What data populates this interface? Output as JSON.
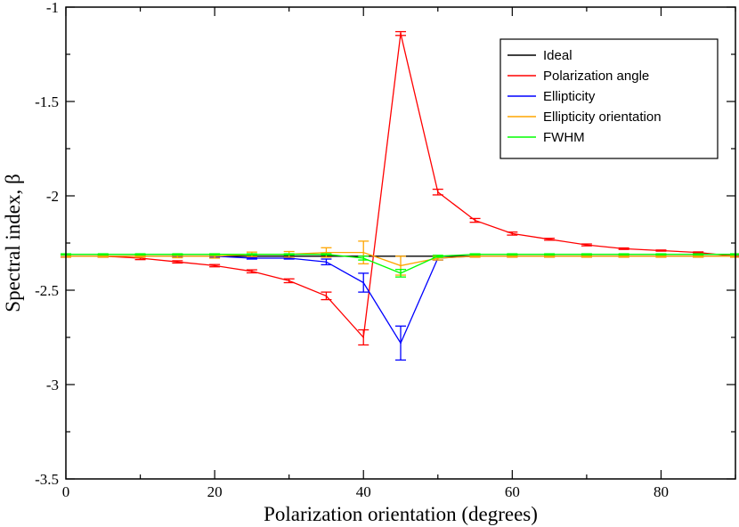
{
  "chart_data": {
    "type": "line",
    "title": "",
    "xlabel": "Polarization orientation (degrees)",
    "ylabel": "Spectral index, β",
    "xlim": [
      0,
      90
    ],
    "ylim": [
      -3.5,
      -1
    ],
    "x_ticks": [
      0,
      20,
      40,
      60,
      80
    ],
    "x_tick_labels": [
      "0",
      "20",
      "40",
      "60",
      "80"
    ],
    "y_ticks": [
      -3.5,
      -3,
      -2.5,
      -2,
      -1.5,
      -1
    ],
    "y_tick_labels": [
      "-3.5",
      "-3",
      "-2.5",
      "-2",
      "-1.5",
      "-1"
    ],
    "grid": false,
    "legend_position": "top-right",
    "series": [
      {
        "name": "Ideal",
        "color": "#000000",
        "x": [
          0,
          90
        ],
        "y": [
          -2.32,
          -2.32
        ],
        "err": [
          0,
          0
        ]
      },
      {
        "name": "Polarization angle",
        "color": "#ff0000",
        "x": [
          0,
          5,
          10,
          15,
          20,
          25,
          30,
          35,
          40,
          45,
          50,
          55,
          60,
          65,
          70,
          75,
          80,
          85,
          90
        ],
        "y": [
          -2.32,
          -2.32,
          -2.33,
          -2.35,
          -2.37,
          -2.4,
          -2.45,
          -2.53,
          -2.75,
          -1.14,
          -1.98,
          -2.13,
          -2.2,
          -2.23,
          -2.26,
          -2.28,
          -2.29,
          -2.3,
          -2.32
        ],
        "err": [
          0.005,
          0.005,
          0.008,
          0.006,
          0.006,
          0.008,
          0.01,
          0.02,
          0.04,
          0.01,
          0.015,
          0.01,
          0.008,
          0.005,
          0.005,
          0.004,
          0.003,
          0.003,
          0.003
        ]
      },
      {
        "name": "Ellipticity",
        "color": "#0000ff",
        "x": [
          0,
          5,
          10,
          15,
          20,
          25,
          30,
          35,
          40,
          45,
          50,
          55,
          60,
          65,
          70,
          75,
          80,
          85,
          90
        ],
        "y": [
          -2.32,
          -2.32,
          -2.32,
          -2.32,
          -2.32,
          -2.33,
          -2.33,
          -2.35,
          -2.46,
          -2.78,
          -2.33,
          -2.32,
          -2.32,
          -2.32,
          -2.32,
          -2.32,
          -2.32,
          -2.32,
          -2.32
        ],
        "err": [
          0.005,
          0.005,
          0.005,
          0.005,
          0.005,
          0.005,
          0.005,
          0.015,
          0.05,
          0.09,
          0.01,
          0.005,
          0.005,
          0.005,
          0.005,
          0.005,
          0.005,
          0.005,
          0.005
        ]
      },
      {
        "name": "Ellipticity orientation",
        "color": "#ffa500",
        "x": [
          0,
          5,
          10,
          15,
          20,
          25,
          30,
          35,
          40,
          45,
          50,
          55,
          60,
          65,
          70,
          75,
          80,
          85,
          90
        ],
        "y": [
          -2.32,
          -2.32,
          -2.32,
          -2.32,
          -2.32,
          -2.31,
          -2.31,
          -2.3,
          -2.3,
          -2.37,
          -2.33,
          -2.32,
          -2.32,
          -2.32,
          -2.32,
          -2.32,
          -2.32,
          -2.32,
          -2.32
        ],
        "err": [
          0.005,
          0.005,
          0.005,
          0.008,
          0.01,
          0.012,
          0.015,
          0.025,
          0.06,
          0.05,
          0.01,
          0.005,
          0.005,
          0.005,
          0.005,
          0.005,
          0.005,
          0.005,
          0.005
        ]
      },
      {
        "name": "FWHM",
        "color": "#00ff00",
        "x": [
          0,
          5,
          10,
          15,
          20,
          25,
          30,
          35,
          40,
          45,
          50,
          55,
          60,
          65,
          70,
          75,
          80,
          85,
          90
        ],
        "y": [
          -2.31,
          -2.31,
          -2.31,
          -2.31,
          -2.31,
          -2.31,
          -2.31,
          -2.31,
          -2.33,
          -2.41,
          -2.32,
          -2.31,
          -2.31,
          -2.31,
          -2.31,
          -2.31,
          -2.31,
          -2.31,
          -2.31
        ],
        "err": [
          0.003,
          0.003,
          0.003,
          0.003,
          0.003,
          0.003,
          0.003,
          0.003,
          0.01,
          0.02,
          0.005,
          0.003,
          0.003,
          0.003,
          0.003,
          0.003,
          0.003,
          0.003,
          0.003
        ]
      }
    ]
  }
}
